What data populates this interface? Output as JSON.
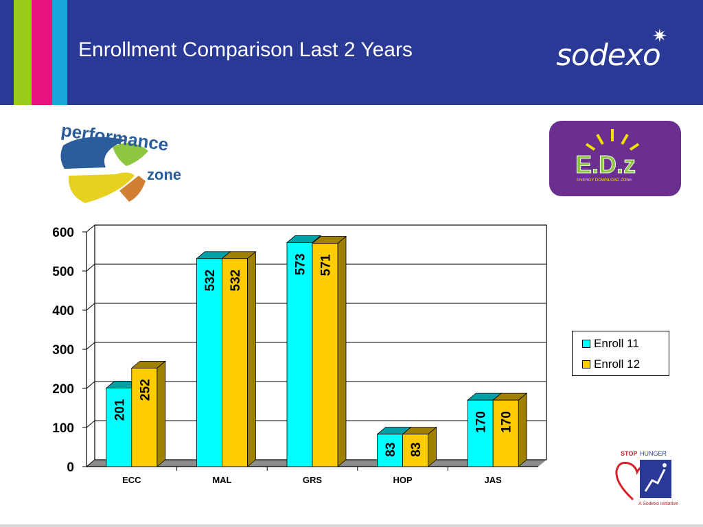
{
  "header": {
    "title": "Enrollment Comparison Last 2 Years",
    "brand": "sodexo",
    "background": "#2a3896"
  },
  "logos": {
    "performance_zone": {
      "line1": "performance",
      "line2": "zone"
    },
    "edz": {
      "main": "E.D.z",
      "sub": "ENERGY DOWNLOAD ZONE"
    },
    "stop_hunger": {
      "stop": "STOP",
      "hunger": "HUNGER",
      "tagline": "A Sodexo Initiative"
    }
  },
  "chart_data": {
    "type": "bar",
    "categories": [
      "ECC",
      "MAL",
      "GRS",
      "HOP",
      "JAS"
    ],
    "series": [
      {
        "name": "Enroll 11",
        "values": [
          201,
          532,
          573,
          83,
          170
        ],
        "color": "#00ffff",
        "side_color": "#00a0a8"
      },
      {
        "name": "Enroll 12",
        "values": [
          252,
          532,
          571,
          83,
          170
        ],
        "color": "#ffcc00",
        "side_color": "#a08000"
      }
    ],
    "ylim": [
      0,
      600
    ],
    "yticks": [
      0,
      100,
      200,
      300,
      400,
      500,
      600
    ],
    "grid": true,
    "legend_position": "right",
    "title": "",
    "xlabel": "",
    "ylabel": ""
  }
}
